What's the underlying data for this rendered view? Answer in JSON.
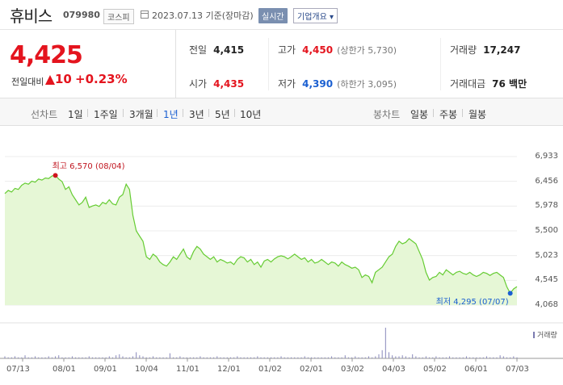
{
  "header": {
    "name": "휴비스",
    "code": "079980",
    "market": "코스피",
    "date_text": "2023.07.13 기준(장마감)",
    "realtime_label": "실시간",
    "corp_info_label": "기업개요 ▾"
  },
  "summary": {
    "current_price": "4,425",
    "diff_label": "전일대비",
    "diff_value": "10",
    "diff_rate": "+0.23%",
    "prev_close_label": "전일",
    "prev_close": "4,415",
    "high_label": "고가",
    "high": "4,450",
    "upper_limit": "(상한가 5,730)",
    "volume_label": "거래량",
    "volume": "17,247",
    "open_label": "시가",
    "open": "4,435",
    "low_label": "저가",
    "low": "4,390",
    "lower_limit": "(하한가 3,095)",
    "amount_label": "거래대금",
    "amount": "76 백만"
  },
  "periods": {
    "line_label": "선차트",
    "line_items": [
      "1일",
      "1주일",
      "3개월",
      "1년",
      "3년",
      "5년",
      "10년"
    ],
    "active": "1년",
    "candle_label": "봉차트",
    "candle_items": [
      "일봉",
      "주봉",
      "월봉"
    ]
  },
  "chart_data": {
    "type": "area",
    "y_ticks": [
      "6,933",
      "6,456",
      "5,978",
      "5,500",
      "5,023",
      "4,545",
      "4,068"
    ],
    "ylim": [
      4068,
      6933
    ],
    "x_ticks": [
      "07/13",
      "08/01",
      "09/01",
      "10/04",
      "11/01",
      "12/01",
      "01/02",
      "02/01",
      "03/02",
      "04/03",
      "05/02",
      "06/01",
      "07/03"
    ],
    "high_note": "최고 6,570 (08/04)",
    "low_note": "최저 4,295 (07/07)",
    "volume_legend": "거래량",
    "colors": {
      "line": "#66cc33",
      "fill": "#e6f7d6",
      "high_dot": "#d0141e",
      "low_dot": "#1a5fd1",
      "volume": "#8888bb"
    },
    "prices": [
      6220,
      6280,
      6250,
      6320,
      6300,
      6380,
      6420,
      6400,
      6460,
      6440,
      6500,
      6480,
      6520,
      6510,
      6560,
      6570,
      6500,
      6450,
      6300,
      6350,
      6200,
      6100,
      6000,
      6050,
      6150,
      5950,
      5980,
      6000,
      5970,
      6050,
      6020,
      6100,
      6020,
      6000,
      6150,
      6200,
      6400,
      6300,
      5800,
      5500,
      5400,
      5300,
      5000,
      4950,
      5050,
      5000,
      4900,
      4850,
      4820,
      4900,
      5000,
      4950,
      5050,
      5150,
      5000,
      4950,
      5100,
      5200,
      5150,
      5050,
      5000,
      4950,
      5000,
      4900,
      4950,
      4920,
      4880,
      4900,
      4850,
      4950,
      5000,
      4980,
      4900,
      4950,
      4850,
      4900,
      4800,
      4920,
      4950,
      4900,
      4960,
      5000,
      5020,
      5000,
      4960,
      5000,
      5050,
      5000,
      4950,
      4980,
      4900,
      4950,
      4880,
      4900,
      4950,
      4900,
      4850,
      4900,
      4880,
      4820,
      4900,
      4850,
      4820,
      4780,
      4800,
      4750,
      4600,
      4650,
      4620,
      4500,
      4700,
      4750,
      4800,
      4900,
      5000,
      5050,
      5200,
      5300,
      5250,
      5280,
      5350,
      5300,
      5250,
      5100,
      4950,
      4700,
      4550,
      4600,
      4620,
      4700,
      4650,
      4750,
      4700,
      4650,
      4700,
      4720,
      4680,
      4660,
      4700,
      4650,
      4620,
      4650,
      4700,
      4680,
      4640,
      4680,
      4700,
      4650,
      4600,
      4420,
      4295,
      4380,
      4425
    ],
    "volumes": [
      2,
      1,
      1,
      2,
      1,
      1,
      3,
      1,
      1,
      2,
      1,
      1,
      1,
      2,
      1,
      2,
      3,
      1,
      1,
      1,
      2,
      1,
      1,
      1,
      1,
      2,
      1,
      1,
      1,
      1,
      1,
      2,
      1,
      3,
      4,
      2,
      1,
      1,
      2,
      6,
      3,
      2,
      1,
      1,
      2,
      1,
      1,
      1,
      1,
      5,
      1,
      1,
      2,
      1,
      1,
      1,
      1,
      1,
      2,
      1,
      1,
      1,
      1,
      2,
      1,
      1,
      1,
      1,
      1,
      2,
      1,
      1,
      1,
      1,
      1,
      2,
      1,
      1,
      1,
      1,
      1,
      1,
      2,
      1,
      1,
      1,
      1,
      1,
      1,
      2,
      1,
      1,
      1,
      1,
      1,
      1,
      1,
      2,
      1,
      1,
      1,
      3,
      1,
      1,
      2,
      1,
      1,
      1,
      2,
      1,
      2,
      4,
      8,
      30,
      6,
      3,
      2,
      2,
      3,
      2,
      1,
      4,
      2,
      1,
      1,
      2,
      1,
      1,
      2,
      1,
      1,
      1,
      2,
      1,
      1,
      1,
      1,
      2,
      1,
      1,
      1,
      1,
      1,
      2,
      1,
      1,
      1,
      3,
      2,
      1,
      1,
      2,
      1
    ]
  }
}
